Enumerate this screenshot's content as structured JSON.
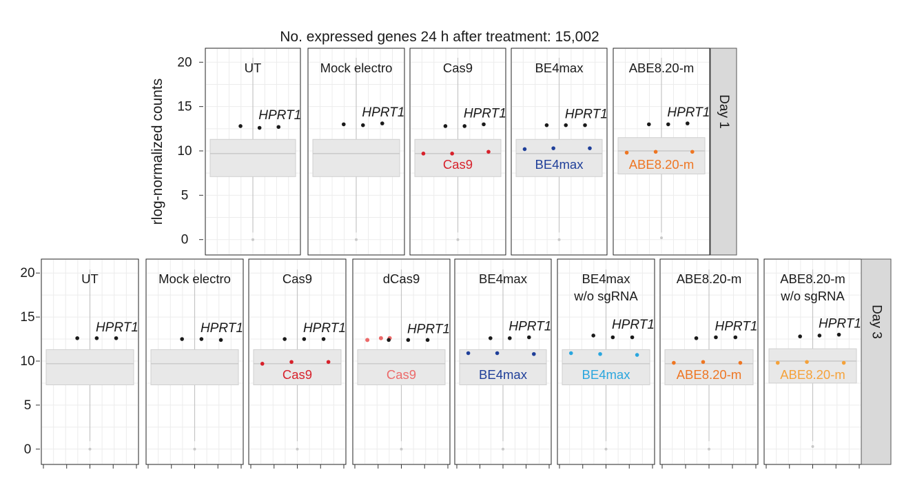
{
  "chart_data": {
    "type": "faceted-box-scatter",
    "title": "No. expressed genes 24 h after treatment: 15,002",
    "ylabel": "rlog-normalized counts",
    "ylim": [
      -0.8,
      20.8
    ],
    "yticks": [
      0,
      5,
      10,
      15,
      20
    ],
    "gene_label": "HPRT1",
    "colors": {
      "gene_points": "#1a1a1a",
      "box_fill": "#e8e8e8",
      "box_stroke": "#cfcfcf",
      "grid": "#ececec",
      "strip_fill": "#d9d9d9",
      "outlier": "#c8c8c8"
    },
    "rows": [
      {
        "strip_label": "Day 1",
        "box": {
          "q1": 7.1,
          "median": 9.7,
          "q3": 11.3,
          "whisker_low": 0.8,
          "whisker_high": 20.5,
          "outlier": 0.0
        },
        "panels": [
          {
            "title": [
              "UT"
            ],
            "gene": [
              12.8,
              12.6,
              12.7
            ]
          },
          {
            "title": [
              "Mock electro"
            ],
            "gene": [
              13.0,
              12.9,
              13.1
            ]
          },
          {
            "title": [
              "Cas9"
            ],
            "gene": [
              12.8,
              12.8,
              13.0
            ],
            "transcript": {
              "label": "Cas9",
              "color": "#d7212b",
              "values": [
                9.7,
                9.7,
                9.9
              ]
            }
          },
          {
            "title": [
              "BE4max"
            ],
            "gene": [
              12.9,
              12.9,
              12.9
            ],
            "transcript": {
              "label": "BE4max",
              "color": "#1f3f99",
              "values": [
                10.2,
                10.3,
                10.3
              ]
            }
          },
          {
            "title": [
              "ABE8.20-m"
            ],
            "gene": [
              13.0,
              13.0,
              13.1
            ],
            "box_override": {
              "q1": 7.4,
              "median": 10.0,
              "q3": 11.5,
              "outlier": 0.2
            },
            "transcript": {
              "label": "ABE8.20-m",
              "color": "#ee7623",
              "values": [
                9.8,
                9.9,
                9.9
              ]
            }
          }
        ]
      },
      {
        "strip_label": "Day 3",
        "box": {
          "q1": 7.3,
          "median": 9.7,
          "q3": 11.3,
          "whisker_low": 0.9,
          "whisker_high": 20.4,
          "outlier": 0.0
        },
        "panels": [
          {
            "title": [
              "UT"
            ],
            "gene": [
              12.6,
              12.6,
              12.6
            ]
          },
          {
            "title": [
              "Mock electro"
            ],
            "gene": [
              12.5,
              12.5,
              12.4
            ]
          },
          {
            "title": [
              "Cas9"
            ],
            "gene": [
              12.5,
              12.5,
              12.5
            ],
            "transcript": {
              "label": "Cas9",
              "color": "#d7212b",
              "values": [
                9.7,
                9.9,
                9.9
              ]
            }
          },
          {
            "title": [
              "dCas9"
            ],
            "gene": [
              12.4,
              12.4,
              12.4
            ],
            "pre_gene": {
              "color": "#ec6a6a",
              "values": [
                12.4,
                12.6,
                12.6
              ]
            },
            "transcript": {
              "label": "Cas9",
              "color": "#ec6a6a",
              "values": []
            }
          },
          {
            "title": [
              "BE4max"
            ],
            "gene": [
              12.6,
              12.6,
              12.7
            ],
            "transcript": {
              "label": "BE4max",
              "color": "#1f3f99",
              "values": [
                10.9,
                10.9,
                10.8
              ]
            }
          },
          {
            "title": [
              "BE4max",
              "w/o sgRNA"
            ],
            "gene": [
              12.9,
              12.7,
              12.7
            ],
            "transcript": {
              "label": "BE4max",
              "color": "#2aa6de",
              "values": [
                10.9,
                10.8,
                10.7
              ]
            }
          },
          {
            "title": [
              "ABE8.20-m"
            ],
            "gene": [
              12.6,
              12.7,
              12.7
            ],
            "transcript": {
              "label": "ABE8.20-m",
              "color": "#ee7623",
              "values": [
                9.8,
                9.9,
                9.8
              ]
            }
          },
          {
            "title": [
              "ABE8.20-m",
              "w/o sgRNA"
            ],
            "gene": [
              12.8,
              12.9,
              13.0
            ],
            "box_override": {
              "q1": 7.5,
              "median": 10.0,
              "q3": 11.4,
              "outlier": 0.3
            },
            "transcript": {
              "label": "ABE8.20-m",
              "color": "#f5a23a",
              "values": [
                9.8,
                9.9,
                9.8
              ]
            }
          }
        ]
      }
    ]
  }
}
